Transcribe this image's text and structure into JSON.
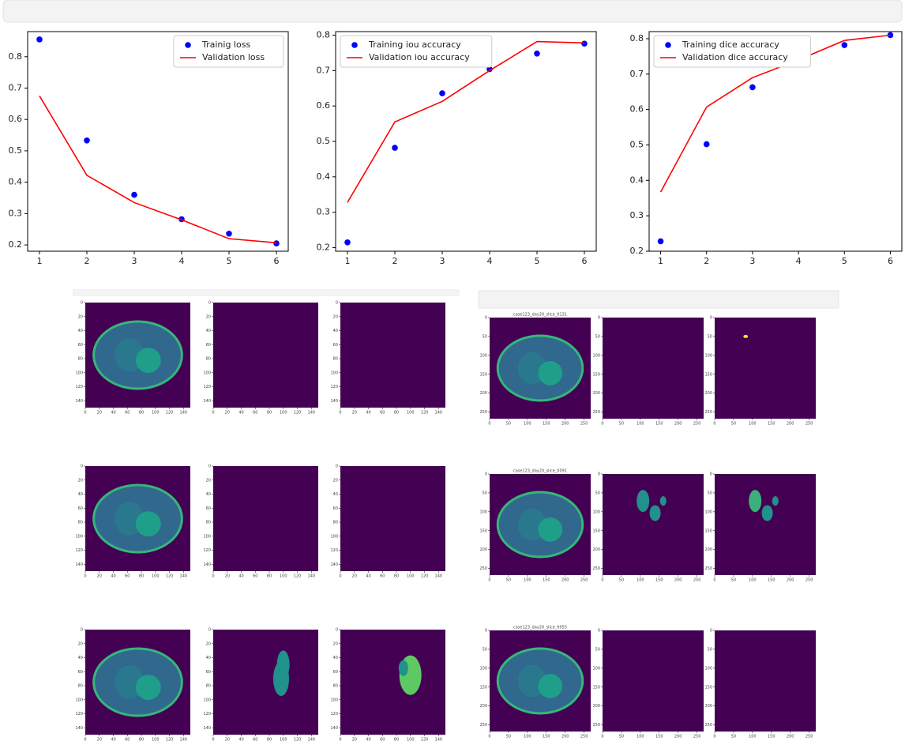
{
  "chart_data": [
    {
      "type": "scatter-line",
      "x": [
        1,
        2,
        3,
        4,
        5,
        6
      ],
      "xlim": [
        0.75,
        6.25
      ],
      "xticks": [
        1,
        2,
        3,
        4,
        5,
        6
      ],
      "ylim": [
        0.18,
        0.88
      ],
      "yticks": [
        0.2,
        0.3,
        0.4,
        0.5,
        0.6,
        0.7,
        0.8
      ],
      "legend": "upper right",
      "series": [
        {
          "name": "Trainig loss",
          "color": "#0000ff",
          "mode": "markers",
          "values": [
            0.855,
            0.533,
            0.36,
            0.282,
            0.236,
            0.205
          ]
        },
        {
          "name": "Validation loss",
          "color": "#ff0000",
          "mode": "lines",
          "values": [
            0.675,
            0.422,
            0.335,
            0.28,
            0.22,
            0.207
          ]
        }
      ]
    },
    {
      "type": "scatter-line",
      "x": [
        1,
        2,
        3,
        4,
        5,
        6
      ],
      "xlim": [
        0.75,
        6.25
      ],
      "xticks": [
        1,
        2,
        3,
        4,
        5,
        6
      ],
      "ylim": [
        0.19,
        0.81
      ],
      "yticks": [
        0.2,
        0.3,
        0.4,
        0.5,
        0.6,
        0.7,
        0.8
      ],
      "legend": "upper left",
      "series": [
        {
          "name": "Training iou accuracy",
          "color": "#0000ff",
          "mode": "markers",
          "values": [
            0.215,
            0.482,
            0.636,
            0.704,
            0.748,
            0.776
          ]
        },
        {
          "name": "Validation iou accuracy",
          "color": "#ff0000",
          "mode": "lines",
          "values": [
            0.328,
            0.555,
            0.613,
            0.7,
            0.782,
            0.778
          ]
        }
      ]
    },
    {
      "type": "scatter-line",
      "x": [
        1,
        2,
        3,
        4,
        5,
        6
      ],
      "xlim": [
        0.75,
        6.25
      ],
      "xticks": [
        1,
        2,
        3,
        4,
        5,
        6
      ],
      "ylim": [
        0.2,
        0.82
      ],
      "yticks": [
        0.2,
        0.3,
        0.4,
        0.5,
        0.6,
        0.7,
        0.8
      ],
      "legend": "upper left",
      "series": [
        {
          "name": "Training dice accuracy",
          "color": "#0000ff",
          "mode": "markers",
          "values": [
            0.228,
            0.502,
            0.663,
            0.737,
            0.782,
            0.81
          ]
        },
        {
          "name": "Validation dice accuracy",
          "color": "#ff0000",
          "mode": "lines",
          "values": [
            0.367,
            0.607,
            0.69,
            0.74,
            0.795,
            0.81
          ]
        }
      ]
    }
  ],
  "image_grids": [
    {
      "xticks": [
        0,
        20,
        40,
        60,
        80,
        100,
        120,
        140
      ],
      "yticks": [
        0,
        20,
        40,
        60,
        80,
        100,
        120,
        140
      ],
      "titles": []
    },
    {
      "xticks": [
        0,
        50,
        100,
        150,
        200,
        250
      ],
      "yticks": [
        0,
        50,
        100,
        150,
        200,
        250
      ],
      "titles": [
        "case123_day20_slice_0131",
        "case123_day20_slice_0091",
        "case123_day20_slice_0055"
      ]
    }
  ]
}
